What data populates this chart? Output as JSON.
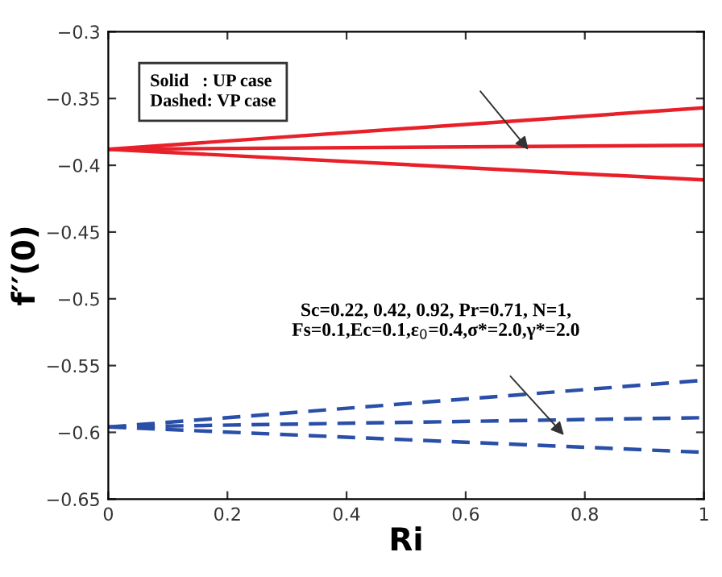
{
  "chart_data": {
    "type": "line",
    "xlabel": "Ri",
    "ylabel": "f′′(0)",
    "x": [
      0,
      1
    ],
    "series": [
      {
        "color": "#e8202a",
        "values": [
          -0.388,
          -0.357
        ],
        "line_style": "solid"
      },
      {
        "color": "#e8202a",
        "values": [
          -0.388,
          -0.385
        ],
        "line_style": "solid"
      },
      {
        "color": "#e8202a",
        "values": [
          -0.388,
          -0.411
        ],
        "line_style": "solid"
      },
      {
        "color": "#2a4fa8",
        "values": [
          -0.596,
          -0.561
        ],
        "line_style": "dashed"
      },
      {
        "color": "#2a4fa8",
        "values": [
          -0.596,
          -0.589
        ],
        "line_style": "dashed"
      },
      {
        "color": "#2a4fa8",
        "values": [
          -0.596,
          -0.615
        ],
        "line_style": "dashed"
      }
    ],
    "xlim": [
      0,
      1
    ],
    "xticks": [
      0,
      0.2,
      0.4,
      0.6,
      0.8,
      1
    ],
    "ylim": [
      -0.65,
      -0.3
    ],
    "yticks": [
      {
        "value": -0.65,
        "label": "−0.65"
      },
      {
        "value": -0.6,
        "label": "−0.6"
      },
      {
        "value": -0.55,
        "label": "−0.55"
      },
      {
        "value": -0.5,
        "label": "−0.5"
      },
      {
        "value": -0.45,
        "label": "−0.45"
      },
      {
        "value": -0.4,
        "label": "−0.4"
      },
      {
        "value": -0.35,
        "label": "−0.35"
      },
      {
        "value": -0.3,
        "label": "−0.3"
      }
    ],
    "annotations": [
      "Solid   : UP case\nDashed: VP case",
      "Sc=0.22, 0.42, 0.92, Pr=0.71, N=1,\nFs=0.1,Ec=0.1,ε$_{0}$=0.4,σ*=2.0,γ*=2.0"
    ],
    "grid": false,
    "legend": false,
    "marker": "none"
  }
}
